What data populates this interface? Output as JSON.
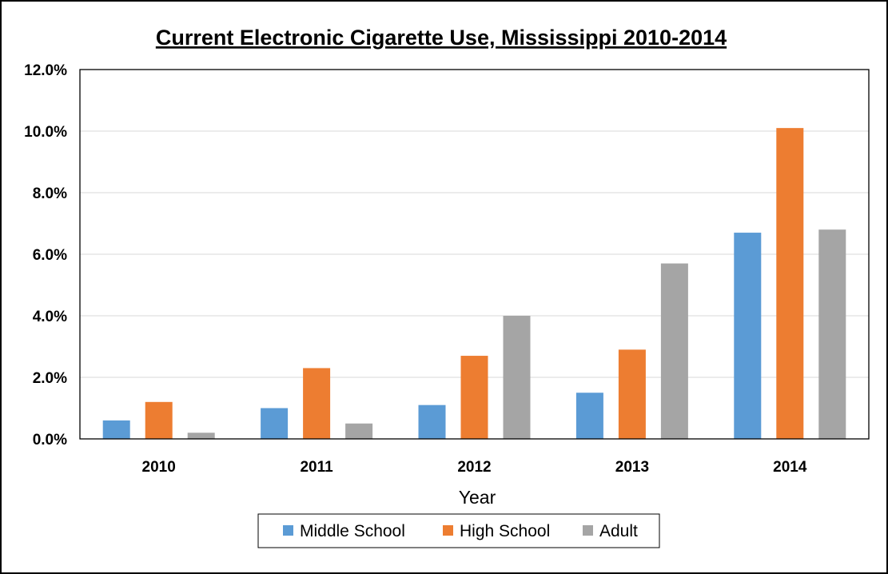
{
  "chart_data": {
    "type": "bar",
    "title": "Current Electronic Cigarette Use, Mississippi 2010-2014",
    "xlabel": "Year",
    "ylabel": "",
    "categories": [
      "2010",
      "2011",
      "2012",
      "2013",
      "2014"
    ],
    "series": [
      {
        "name": "Middle School",
        "color": "#5B9BD5",
        "values": [
          0.6,
          1.0,
          1.1,
          1.5,
          6.7
        ]
      },
      {
        "name": "High School",
        "color": "#ED7D31",
        "values": [
          1.2,
          2.3,
          2.7,
          2.9,
          10.1
        ]
      },
      {
        "name": "Adult",
        "color": "#A5A5A5",
        "values": [
          0.2,
          0.5,
          4.0,
          5.7,
          6.8
        ]
      }
    ],
    "ylim": [
      0,
      12
    ],
    "yticks": [
      0,
      2,
      4,
      6,
      8,
      10,
      12
    ],
    "ytick_labels": [
      "0.0%",
      "2.0%",
      "4.0%",
      "6.0%",
      "8.0%",
      "10.0%",
      "12.0%"
    ],
    "grid": true,
    "legend_position": "bottom"
  }
}
